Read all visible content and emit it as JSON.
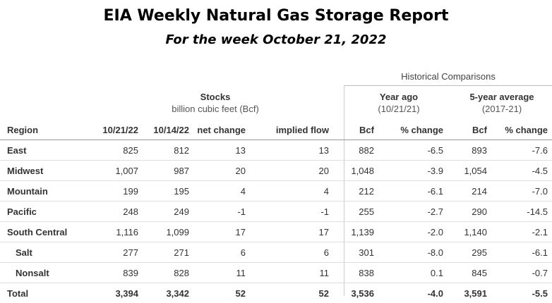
{
  "title": "EIA Weekly Natural Gas Storage Report",
  "subtitle": "For the week October 21, 2022",
  "historical_label": "Historical Comparisons",
  "groups": {
    "stocks": {
      "title": "Stocks",
      "sub": "billion cubic feet (Bcf)"
    },
    "year_ago": {
      "title": "Year ago",
      "sub": "(10/21/21)"
    },
    "five_year": {
      "title": "5-year average",
      "sub": "(2017-21)"
    }
  },
  "columns": [
    "Region",
    "10/21/22",
    "10/14/22",
    "net change",
    "implied flow",
    "Bcf",
    "% change",
    "Bcf",
    "% change"
  ],
  "rows": [
    [
      "East",
      "825",
      "812",
      "13",
      "13",
      "882",
      "-6.5",
      "893",
      "-7.6"
    ],
    [
      "Midwest",
      "1,007",
      "987",
      "20",
      "20",
      "1,048",
      "-3.9",
      "1,054",
      "-4.5"
    ],
    [
      "Mountain",
      "199",
      "195",
      "4",
      "4",
      "212",
      "-6.1",
      "214",
      "-7.0"
    ],
    [
      "Pacific",
      "248",
      "249",
      "-1",
      "-1",
      "255",
      "-2.7",
      "290",
      "-14.5"
    ],
    [
      "South Central",
      "1,116",
      "1,099",
      "17",
      "17",
      "1,139",
      "-2.0",
      "1,140",
      "-2.1"
    ],
    [
      "Salt",
      "277",
      "271",
      "6",
      "6",
      "301",
      "-8.0",
      "295",
      "-6.1"
    ],
    [
      "Nonsalt",
      "839",
      "828",
      "11",
      "11",
      "838",
      "0.1",
      "845",
      "-0.7"
    ],
    [
      "Total",
      "3,394",
      "3,342",
      "52",
      "52",
      "3,536",
      "-4.0",
      "3,591",
      "-5.5"
    ]
  ]
}
